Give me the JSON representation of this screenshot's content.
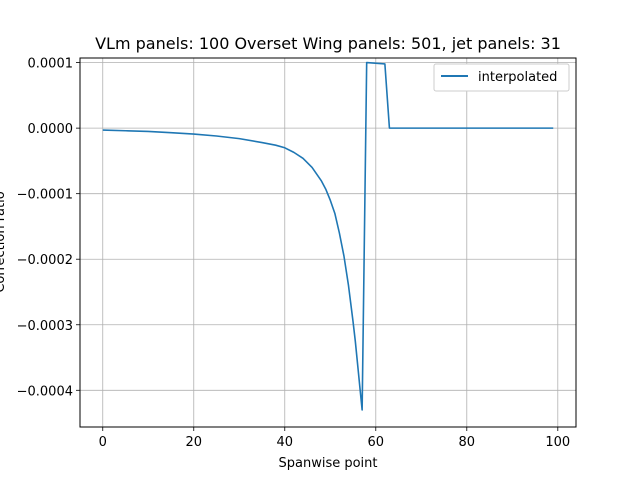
{
  "chart_data": {
    "type": "line",
    "title": "VLm panels: 100 Overset Wing panels: 501, jet panels: 31",
    "xlabel": "Spanwise point",
    "ylabel": "Correction ratio",
    "xlim": [
      -5,
      104
    ],
    "ylim": [
      -0.000456,
      0.000107
    ],
    "xticks": [
      0,
      20,
      40,
      60,
      80,
      100
    ],
    "xtick_labels": [
      "0",
      "20",
      "40",
      "60",
      "80",
      "100"
    ],
    "yticks": [
      0.0001,
      0.0,
      -0.0001,
      -0.0002,
      -0.0003,
      -0.0004
    ],
    "ytick_labels": [
      "0.0001",
      "0.0000",
      "−0.0001",
      "−0.0002",
      "−0.0003",
      "−0.0004"
    ],
    "grid": true,
    "legend_position": "upper right",
    "series": [
      {
        "name": "interpolated",
        "color": "#1f77b4",
        "x": [
          0,
          5,
          10,
          15,
          20,
          25,
          30,
          35,
          38,
          40,
          42,
          44,
          46,
          48,
          49,
          50,
          51,
          52,
          53,
          54,
          55,
          55.5,
          56,
          56.5,
          57,
          58,
          62,
          63,
          70,
          80,
          90,
          99
        ],
        "y": [
          -3e-06,
          -4e-06,
          -5e-06,
          -7e-06,
          -9e-06,
          -1.2e-05,
          -1.6e-05,
          -2.2e-05,
          -2.6e-05,
          -3e-05,
          -3.7e-05,
          -4.6e-05,
          -6e-05,
          -8e-05,
          -9.3e-05,
          -0.00011,
          -0.00013,
          -0.00016,
          -0.000195,
          -0.00024,
          -0.000295,
          -0.000325,
          -0.00036,
          -0.000395,
          -0.00043,
          0.0001,
          9.8e-05,
          0.0,
          0.0,
          0.0,
          0.0,
          0.0
        ]
      }
    ]
  }
}
